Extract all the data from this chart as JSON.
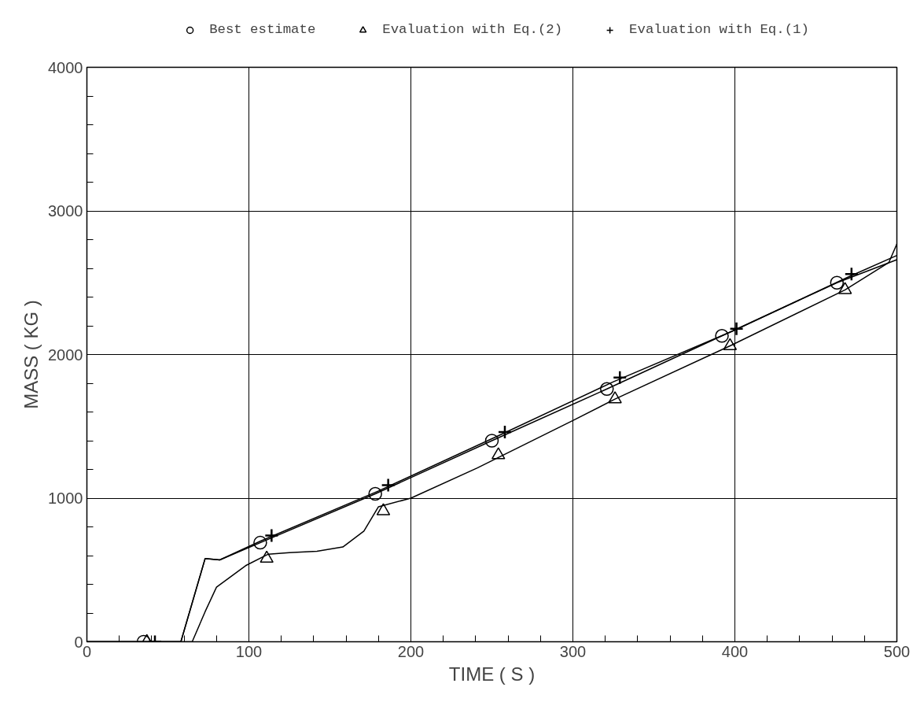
{
  "chart_data": {
    "type": "line",
    "xlabel": "TIME ( S )",
    "ylabel": "MASS ( KG )",
    "xlim": [
      0,
      500
    ],
    "ylim": [
      0,
      4000
    ],
    "xticks": [
      0,
      {
        "value": 20,
        "label": null
      },
      {
        "value": 40,
        "label": null
      },
      {
        "value": 60,
        "label": null
      },
      {
        "value": 80,
        "label": null
      },
      100,
      {
        "value": 120,
        "label": null
      },
      {
        "value": 140,
        "label": null
      },
      {
        "value": 160,
        "label": null
      },
      {
        "value": 180,
        "label": null
      },
      200,
      {
        "value": 220,
        "label": null
      },
      {
        "value": 240,
        "label": null
      },
      {
        "value": 260,
        "label": null
      },
      {
        "value": 280,
        "label": null
      },
      300,
      {
        "value": 320,
        "label": null
      },
      {
        "value": 340,
        "label": null
      },
      {
        "value": 360,
        "label": null
      },
      {
        "value": 380,
        "label": null
      },
      400,
      {
        "value": 420,
        "label": null
      },
      {
        "value": 440,
        "label": null
      },
      {
        "value": 460,
        "label": null
      },
      {
        "value": 480,
        "label": null
      },
      500
    ],
    "yticks": [
      0,
      {
        "value": 200,
        "label": null
      },
      {
        "value": 400,
        "label": null
      },
      {
        "value": 600,
        "label": null
      },
      {
        "value": 800,
        "label": null
      },
      1000,
      {
        "value": 1200,
        "label": null
      },
      {
        "value": 1400,
        "label": null
      },
      {
        "value": 1600,
        "label": null
      },
      {
        "value": 1800,
        "label": null
      },
      2000,
      {
        "value": 2200,
        "label": null
      },
      {
        "value": 2400,
        "label": null
      },
      {
        "value": 2600,
        "label": null
      },
      {
        "value": 2800,
        "label": null
      },
      3000,
      {
        "value": 3200,
        "label": null
      },
      {
        "value": 3400,
        "label": null
      },
      {
        "value": 3600,
        "label": null
      },
      {
        "value": 3800,
        "label": null
      },
      4000
    ],
    "grid": true,
    "legend": "top",
    "series": [
      {
        "color": "#000000",
        "x": [
          0,
          58,
          73,
          82,
          107,
          178,
          250,
          321,
          392,
          463,
          500
        ],
        "values": [
          0,
          0,
          580,
          570,
          690,
          1030,
          1400,
          1760,
          2130,
          2500,
          2660
        ]
      },
      {
        "color": "#000000",
        "x": [
          0,
          58,
          73,
          82,
          107,
          180,
          255,
          325,
          400,
          470,
          500
        ],
        "values": [
          0,
          0,
          580,
          570,
          700,
          1050,
          1440,
          1810,
          2170,
          2540,
          2690
        ]
      },
      {
        "color": "#000000",
        "x": [
          0,
          65,
          73,
          80,
          98,
          112,
          125,
          142,
          158,
          171,
          180,
          200,
          241,
          300,
          326,
          397,
          468,
          495,
          500
        ],
        "values": [
          0,
          0,
          210,
          380,
          530,
          610,
          620,
          630,
          660,
          770,
          940,
          1000,
          1210,
          1540,
          1690,
          2060,
          2450,
          2640,
          2770
        ]
      },
      {
        "type": "scatter",
        "name": "Best estimate",
        "color": "#000000",
        "marker": "circle",
        "x": [
          35,
          107,
          178,
          250,
          321,
          392,
          463
        ],
        "values": [
          0,
          690,
          1030,
          1400,
          1760,
          2130,
          2500
        ]
      },
      {
        "type": "scatter",
        "name": "Evaluation with Eq.(2)",
        "color": "#000000",
        "marker": "triangle",
        "x": [
          37,
          111,
          183,
          254,
          326,
          397,
          468
        ],
        "values": [
          0,
          580,
          910,
          1300,
          1690,
          2060,
          2450
        ]
      },
      {
        "type": "scatter",
        "name": "Evaluation with Eq.(1)",
        "color": "#000000",
        "marker": "cross",
        "x": [
          42,
          114,
          186,
          258,
          329,
          401,
          472
        ],
        "values": [
          0,
          740,
          1090,
          1460,
          1840,
          2180,
          2560
        ]
      }
    ]
  }
}
